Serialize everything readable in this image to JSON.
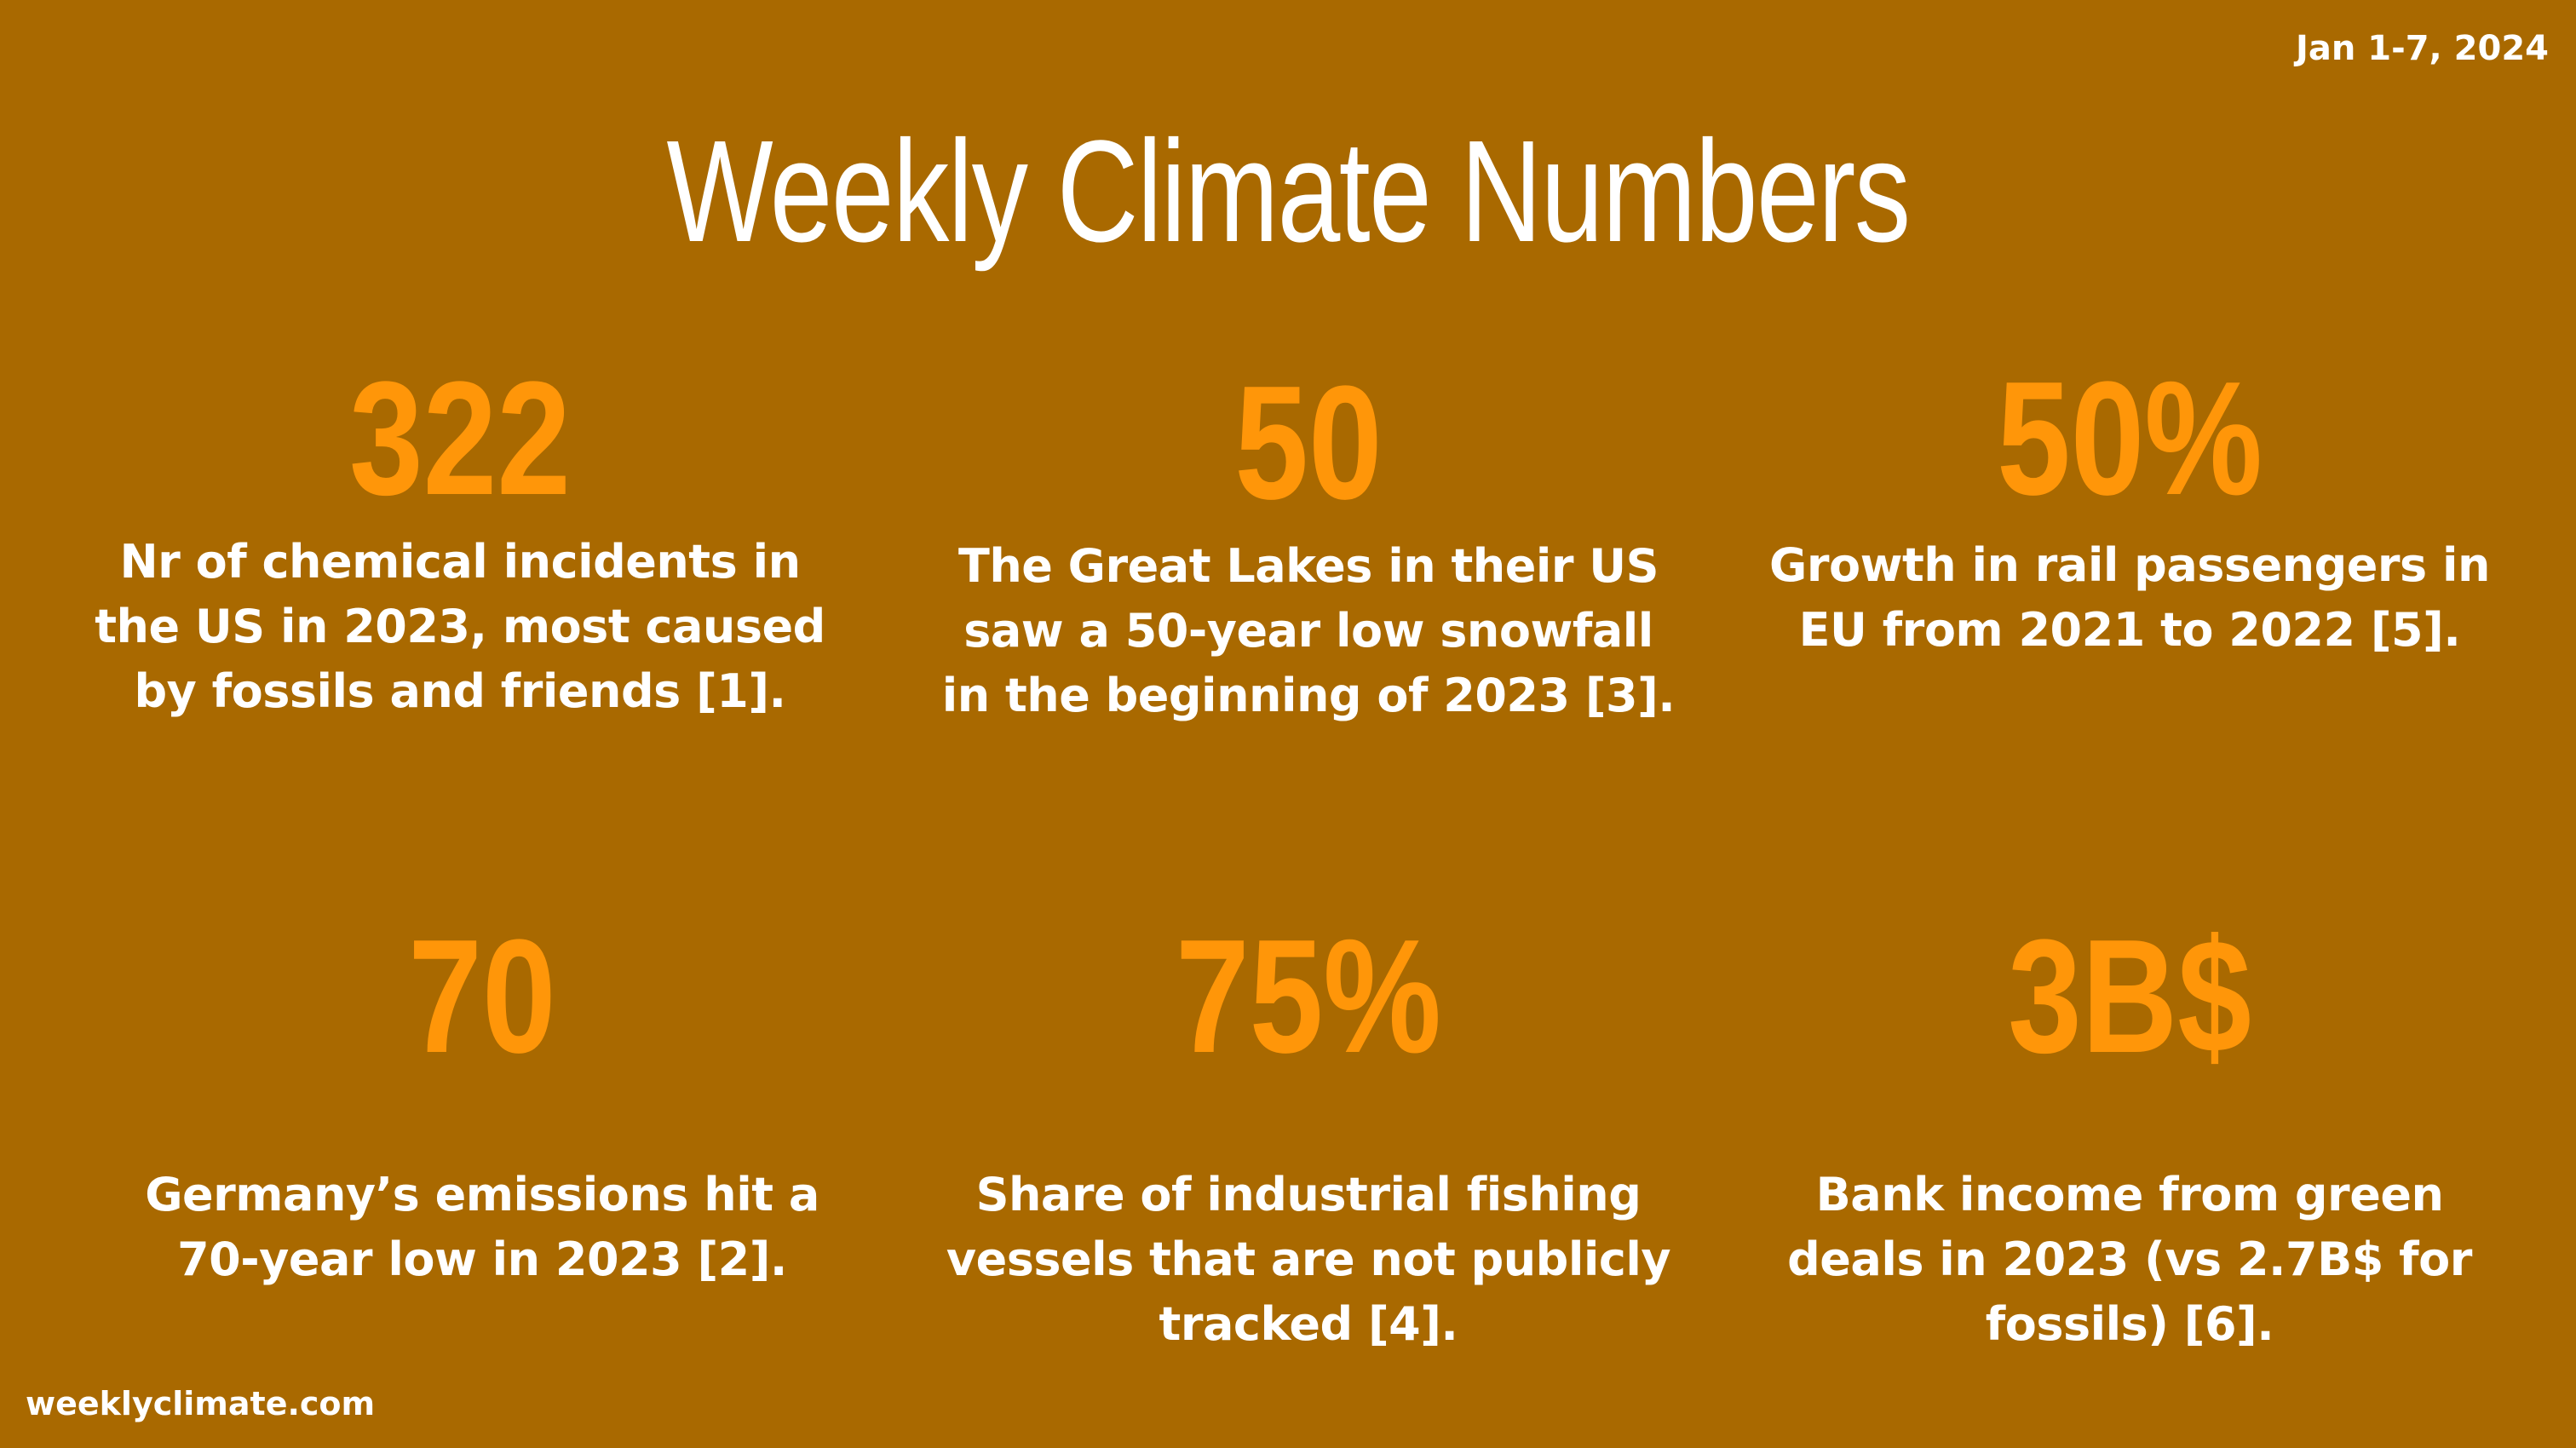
{
  "header": {
    "date_range": "Jan 1-7, 2024",
    "title": "Weekly Climate Numbers"
  },
  "stats": [
    {
      "value": "322",
      "description": "Nr of chemical incidents in the US in 2023, most caused by fossils and friends [1]."
    },
    {
      "value": "50",
      "description": "The Great Lakes in their US saw a 50-year low snowfall in the beginning of 2023 [3]."
    },
    {
      "value": "50%",
      "description": "Growth in rail passengers in EU from 2021 to 2022 [5]."
    },
    {
      "value": "70",
      "description": "Germany’s emissions hit a 70-year low in 2023 [2]."
    },
    {
      "value": "75%",
      "description": "Share of industrial fishing vessels that are not publicly tracked [4]."
    },
    {
      "value": "3B$",
      "description": "Bank income from green deals in 2023 (vs 2.7B$ for fossils) [6]."
    }
  ],
  "footer": {
    "site": "weeklyclimate.com"
  },
  "colors": {
    "background": "#a96900",
    "number_accent": "#ff9609",
    "text": "#ffffff"
  }
}
